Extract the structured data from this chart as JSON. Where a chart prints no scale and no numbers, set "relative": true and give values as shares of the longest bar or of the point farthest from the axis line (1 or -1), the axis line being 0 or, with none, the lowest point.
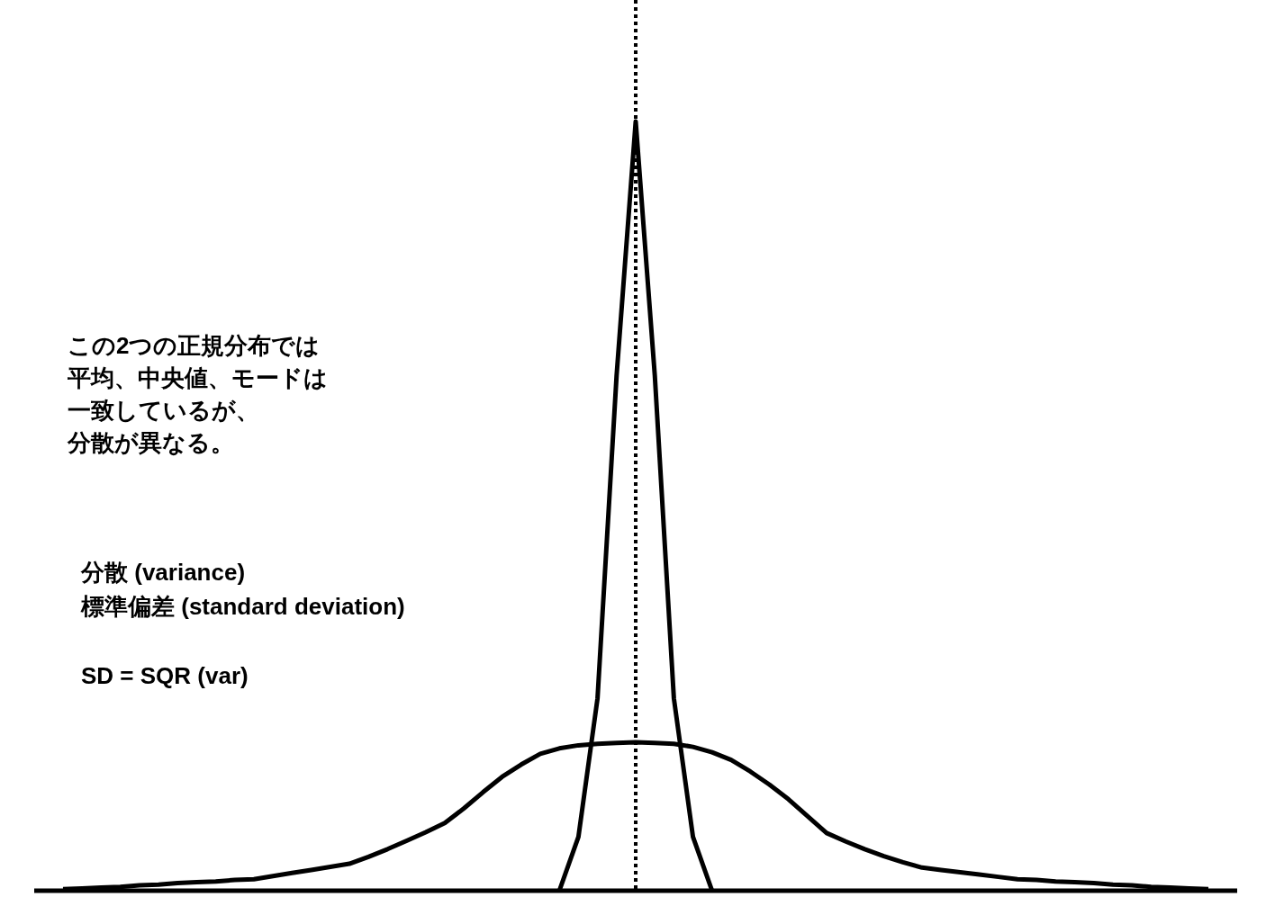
{
  "chart_data": {
    "type": "line",
    "relative": true,
    "categories": [
      null,
      null,
      null,
      null,
      null,
      null,
      null,
      null,
      null,
      null,
      null,
      null,
      null,
      null,
      null,
      null,
      null,
      null,
      null,
      null,
      null,
      null,
      null,
      null,
      null,
      null,
      null,
      null,
      null,
      null,
      null,
      null,
      null,
      null,
      null,
      null,
      null,
      null,
      null,
      null,
      null,
      null,
      null,
      null,
      null,
      null,
      null,
      null,
      null,
      null,
      null,
      null,
      null,
      null,
      null,
      null,
      null,
      null,
      null,
      null,
      null
    ],
    "series": [
      {
        "color": "#000000",
        "values": [
          null,
          null,
          null,
          null,
          null,
          null,
          null,
          null,
          null,
          null,
          null,
          null,
          null,
          null,
          null,
          null,
          null,
          null,
          null,
          null,
          null,
          null,
          null,
          null,
          null,
          null,
          0,
          0.07,
          0.25,
          0.67,
          1,
          0.67,
          0.25,
          0.07,
          0,
          null,
          null,
          null,
          null,
          null,
          null,
          null,
          null,
          null,
          null,
          null,
          null,
          null,
          null,
          null,
          null,
          null,
          null,
          null,
          null,
          null,
          null,
          null,
          null,
          null,
          null
        ]
      },
      {
        "color": "#000000",
        "values": [
          0.002,
          0.003,
          0.004,
          0.005,
          0.007,
          0.008,
          0.01,
          0.011,
          0.012,
          0.014,
          0.015,
          0.019,
          0.023,
          0.027,
          0.031,
          0.035,
          0.044,
          0.054,
          0.065,
          0.076,
          0.088,
          0.107,
          0.128,
          0.148,
          0.164,
          0.178,
          0.185,
          0.189,
          0.191,
          0.192,
          0.193,
          0.192,
          0.191,
          0.187,
          0.18,
          0.17,
          0.155,
          0.138,
          0.119,
          0.097,
          0.075,
          0.064,
          0.054,
          0.045,
          0.037,
          0.03,
          0.027,
          0.024,
          0.021,
          0.018,
          0.015,
          0.014,
          0.012,
          0.011,
          0.01,
          0.008,
          0.007,
          0.005,
          0.004,
          0.003,
          0.002
        ]
      }
    ],
    "ref_lines": [
      {
        "axis": "x",
        "line_style": "dotted",
        "color": "#000000"
      }
    ],
    "annotations": [
      "この2つの正規分布では",
      "平均、中央値、モードは",
      "一致しているが、",
      "分散が異なる。",
      "分散 (variance)",
      "標準偏差 (standard deviation)",
      "SD = SQR (var)"
    ]
  }
}
